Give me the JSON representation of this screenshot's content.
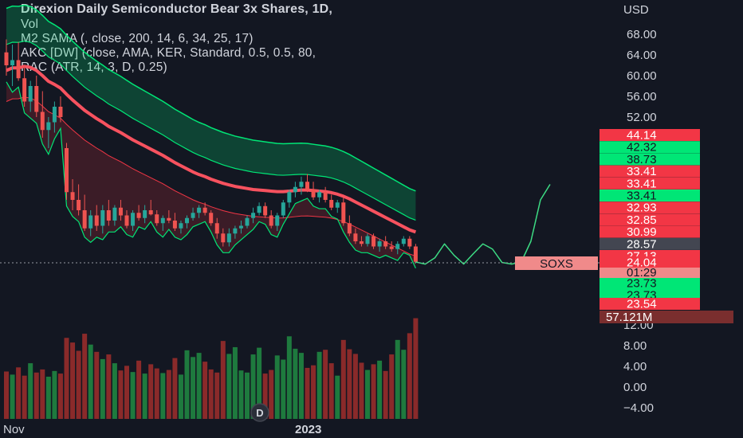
{
  "header": {
    "line1": "Direxion Daily Semiconductor Bear 3x Shares, 1D,",
    "line2": "Vol",
    "line3": "M2 SAMA (, close, 200, 14, 6, 34, 25, 17)",
    "line4": "AKC [DW] (close, AMA, KER, Standard, 0.5, 0.5, 80,",
    "line5": "RAC (ATR, 14, 3, D, 0.25)"
  },
  "symbol_tag": "SOXS",
  "countdown": "01:29",
  "volume_badge": "57.121M",
  "colors": {
    "background": "#131722",
    "up": "#26a69a",
    "down": "#ef5350",
    "bright_green": "#00e676",
    "red_band": "#f23645",
    "ama_line": "#f7525f"
  },
  "chart_data": [
    {
      "type": "candlestick",
      "currency": "USD",
      "y_ticks": [
        "68.00",
        "64.00",
        "60.00",
        "56.00",
        "52.00"
      ],
      "ylim": [
        23,
        70
      ],
      "x_ticks": [
        "Nov",
        "2023"
      ],
      "price_labels": [
        {
          "value": "44.14",
          "color": "red"
        },
        {
          "value": "42.32",
          "color": "green"
        },
        {
          "value": "38.73",
          "color": "green"
        },
        {
          "value": "33.41",
          "color": "red"
        },
        {
          "value": "33.41",
          "color": "red"
        },
        {
          "value": "33.41",
          "color": "green"
        },
        {
          "value": "32.93",
          "color": "red"
        },
        {
          "value": "32.85",
          "color": "red"
        },
        {
          "value": "30.99",
          "color": "red"
        },
        {
          "value": "28.57",
          "color": "gray"
        },
        {
          "value": "27.13",
          "color": "red"
        },
        {
          "value": "26.15",
          "color": "green"
        },
        {
          "value": "24.04",
          "color": "red"
        },
        {
          "value": "23.73",
          "color": "green"
        },
        {
          "value": "23.73",
          "color": "green"
        },
        {
          "value": "23.54",
          "color": "red"
        }
      ],
      "candles": [
        {
          "o": 64.5,
          "h": 67.0,
          "l": 60.0,
          "c": 62.0
        },
        {
          "o": 62.0,
          "h": 66.0,
          "l": 58.0,
          "c": 63.0
        },
        {
          "o": 63.0,
          "h": 66.5,
          "l": 59.0,
          "c": 59.5
        },
        {
          "o": 59.5,
          "h": 62.0,
          "l": 54.0,
          "c": 55.0
        },
        {
          "o": 55.0,
          "h": 59.0,
          "l": 53.0,
          "c": 58.0
        },
        {
          "o": 58.0,
          "h": 60.0,
          "l": 52.0,
          "c": 53.0
        },
        {
          "o": 53.0,
          "h": 57.0,
          "l": 48.0,
          "c": 49.5
        },
        {
          "o": 49.5,
          "h": 52.0,
          "l": 46.0,
          "c": 51.0
        },
        {
          "o": 51.0,
          "h": 55.0,
          "l": 49.0,
          "c": 54.0
        },
        {
          "o": 54.0,
          "h": 56.0,
          "l": 51.0,
          "c": 52.0
        },
        {
          "o": 46.0,
          "h": 47.0,
          "l": 36.0,
          "c": 37.5
        },
        {
          "o": 37.5,
          "h": 40.0,
          "l": 34.0,
          "c": 36.0
        },
        {
          "o": 36.0,
          "h": 39.0,
          "l": 33.0,
          "c": 34.0
        },
        {
          "o": 34.0,
          "h": 37.0,
          "l": 30.0,
          "c": 30.5
        },
        {
          "o": 30.5,
          "h": 34.0,
          "l": 29.0,
          "c": 33.0
        },
        {
          "o": 33.0,
          "h": 35.0,
          "l": 30.0,
          "c": 31.0
        },
        {
          "o": 31.0,
          "h": 35.0,
          "l": 29.5,
          "c": 34.0
        },
        {
          "o": 34.0,
          "h": 36.0,
          "l": 31.0,
          "c": 32.0
        },
        {
          "o": 32.0,
          "h": 35.0,
          "l": 31.0,
          "c": 34.5
        },
        {
          "o": 34.5,
          "h": 36.0,
          "l": 32.0,
          "c": 33.0
        },
        {
          "o": 33.0,
          "h": 34.0,
          "l": 30.5,
          "c": 31.0
        },
        {
          "o": 31.0,
          "h": 34.0,
          "l": 30.0,
          "c": 33.5
        },
        {
          "o": 33.5,
          "h": 35.0,
          "l": 32.0,
          "c": 32.5
        },
        {
          "o": 32.5,
          "h": 35.0,
          "l": 31.5,
          "c": 34.0
        },
        {
          "o": 34.0,
          "h": 36.0,
          "l": 33.0,
          "c": 33.2
        },
        {
          "o": 33.2,
          "h": 34.0,
          "l": 31.0,
          "c": 31.5
        },
        {
          "o": 31.5,
          "h": 33.0,
          "l": 30.0,
          "c": 32.5
        },
        {
          "o": 32.5,
          "h": 34.0,
          "l": 31.5,
          "c": 32.0
        },
        {
          "o": 32.0,
          "h": 33.5,
          "l": 30.0,
          "c": 30.5
        },
        {
          "o": 30.5,
          "h": 32.0,
          "l": 29.5,
          "c": 31.5
        },
        {
          "o": 31.5,
          "h": 33.0,
          "l": 30.5,
          "c": 32.5
        },
        {
          "o": 32.5,
          "h": 34.5,
          "l": 32.0,
          "c": 33.5
        },
        {
          "o": 33.5,
          "h": 35.0,
          "l": 32.5,
          "c": 34.5
        },
        {
          "o": 34.5,
          "h": 35.5,
          "l": 33.0,
          "c": 33.5
        },
        {
          "o": 33.5,
          "h": 34.0,
          "l": 31.0,
          "c": 31.5
        },
        {
          "o": 31.5,
          "h": 32.5,
          "l": 28.5,
          "c": 29.5
        },
        {
          "o": 29.5,
          "h": 30.5,
          "l": 27.0,
          "c": 27.8
        },
        {
          "o": 27.8,
          "h": 30.5,
          "l": 27.0,
          "c": 29.5
        },
        {
          "o": 29.5,
          "h": 31.0,
          "l": 28.5,
          "c": 30.5
        },
        {
          "o": 30.5,
          "h": 32.0,
          "l": 29.5,
          "c": 31.0
        },
        {
          "o": 31.0,
          "h": 33.0,
          "l": 30.5,
          "c": 32.5
        },
        {
          "o": 32.5,
          "h": 34.5,
          "l": 31.5,
          "c": 33.5
        },
        {
          "o": 33.5,
          "h": 35.5,
          "l": 33.0,
          "c": 34.8
        },
        {
          "o": 34.8,
          "h": 35.5,
          "l": 32.5,
          "c": 33.0
        },
        {
          "o": 33.0,
          "h": 34.0,
          "l": 30.5,
          "c": 31.0
        },
        {
          "o": 31.0,
          "h": 33.5,
          "l": 30.0,
          "c": 33.0
        },
        {
          "o": 33.0,
          "h": 36.0,
          "l": 32.5,
          "c": 35.5
        },
        {
          "o": 35.5,
          "h": 38.0,
          "l": 34.5,
          "c": 37.5
        },
        {
          "o": 37.5,
          "h": 39.5,
          "l": 36.5,
          "c": 38.5
        },
        {
          "o": 38.5,
          "h": 40.5,
          "l": 37.0,
          "c": 39.5
        },
        {
          "o": 39.5,
          "h": 41.0,
          "l": 37.5,
          "c": 38.0
        },
        {
          "o": 38.0,
          "h": 39.5,
          "l": 36.0,
          "c": 36.5
        },
        {
          "o": 36.5,
          "h": 38.0,
          "l": 35.5,
          "c": 37.5
        },
        {
          "o": 37.5,
          "h": 38.5,
          "l": 35.5,
          "c": 36.0
        },
        {
          "o": 36.0,
          "h": 37.0,
          "l": 34.0,
          "c": 34.5
        },
        {
          "o": 34.5,
          "h": 36.0,
          "l": 33.5,
          "c": 35.5
        },
        {
          "o": 35.5,
          "h": 36.5,
          "l": 31.0,
          "c": 31.5
        },
        {
          "o": 31.5,
          "h": 33.0,
          "l": 29.0,
          "c": 29.5
        },
        {
          "o": 29.5,
          "h": 30.5,
          "l": 27.5,
          "c": 28.0
        },
        {
          "o": 28.0,
          "h": 29.0,
          "l": 27.0,
          "c": 27.5
        },
        {
          "o": 27.5,
          "h": 29.5,
          "l": 27.0,
          "c": 29.0
        },
        {
          "o": 29.0,
          "h": 29.5,
          "l": 26.5,
          "c": 27.0
        },
        {
          "o": 27.0,
          "h": 28.5,
          "l": 26.0,
          "c": 28.0
        },
        {
          "o": 28.0,
          "h": 29.0,
          "l": 26.5,
          "c": 27.0
        },
        {
          "o": 27.0,
          "h": 28.0,
          "l": 26.0,
          "c": 26.5
        },
        {
          "o": 26.5,
          "h": 28.0,
          "l": 25.5,
          "c": 27.5
        },
        {
          "o": 27.5,
          "h": 29.0,
          "l": 27.0,
          "c": 28.5
        },
        {
          "o": 28.5,
          "h": 29.0,
          "l": 26.5,
          "c": 27.0
        },
        {
          "o": 27.0,
          "h": 27.5,
          "l": 24.0,
          "c": 24.04
        }
      ],
      "ama_line": [
        61,
        61.5,
        61.5,
        61.8,
        61.6,
        61.0,
        60.0,
        58.9,
        58.3,
        57.6,
        56.4,
        55.3,
        54.3,
        53.3,
        52.5,
        51.7,
        51.0,
        50.2,
        49.6,
        49.0,
        48.3,
        47.6,
        47.0,
        46.4,
        45.8,
        45.2,
        44.6,
        43.9,
        43.2,
        42.6,
        42.0,
        41.4,
        40.9,
        40.5,
        40.0,
        39.6,
        39.2,
        38.9,
        38.6,
        38.4,
        38.2,
        38.0,
        37.9,
        37.8,
        37.7,
        37.6,
        37.6,
        37.7,
        37.8,
        37.9,
        37.9,
        37.8,
        37.7,
        37.6,
        37.4,
        37.1,
        36.7,
        36.2,
        35.6,
        35.0,
        34.4,
        33.8,
        33.2,
        32.6,
        32.0,
        31.4,
        30.8,
        30.2,
        29.8
      ],
      "projection": [
        24.0,
        23.6,
        24.8,
        27.5,
        25.3,
        23.6,
        25.6,
        27.5,
        26.5,
        23.9,
        23.6,
        24.0,
        28.0,
        36.0,
        39.0
      ]
    },
    {
      "type": "bar",
      "name": "Vol",
      "y_ticks": [
        "12.00",
        "8.00",
        "4.00",
        "0.00",
        "−4.00"
      ],
      "ylim": [
        -5.5,
        14
      ],
      "values": [
        3.0,
        2.4,
        3.8,
        2.2,
        4.6,
        2.8,
        3.4,
        2.0,
        3.1,
        2.6,
        9.5,
        8.6,
        7.0,
        10.3,
        8.2,
        6.8,
        5.4,
        6.3,
        4.6,
        3.2,
        4.1,
        2.9,
        5.1,
        2.6,
        4.4,
        3.6,
        2.7,
        3.3,
        5.6,
        2.4,
        7.1,
        5.8,
        6.6,
        4.9,
        3.4,
        2.8,
        8.9,
        6.4,
        7.7,
        3.2,
        2.8,
        6.3,
        7.6,
        2.6,
        3.3,
        6.1,
        5.3,
        9.8,
        7.4,
        6.6,
        3.7,
        4.2,
        6.8,
        7.2,
        4.6,
        2.2,
        9.1,
        7.3,
        6.4,
        4.7,
        3.3,
        4.4,
        5.1,
        3.1,
        6.3,
        9.1,
        7.2,
        10.4,
        13.3
      ]
    }
  ]
}
